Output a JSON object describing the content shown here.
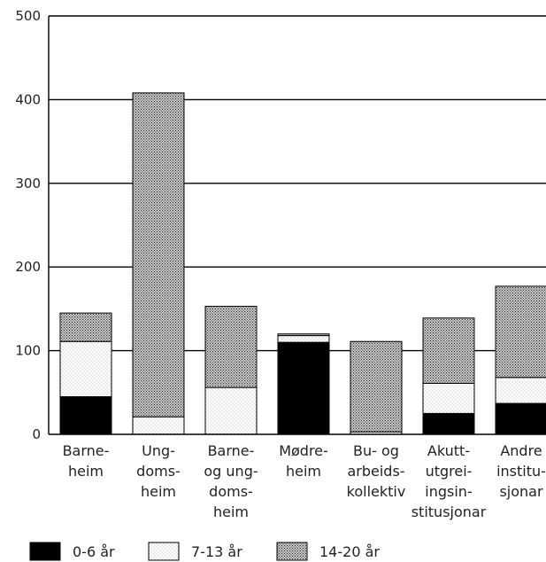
{
  "chart_data": {
    "type": "bar",
    "stacked": true,
    "categories": [
      [
        "Barne-",
        "heim"
      ],
      [
        "Ung-",
        "doms-",
        "heim"
      ],
      [
        "Barne-",
        "og ung-",
        "doms-",
        "heim"
      ],
      [
        "Mødre-",
        "heim"
      ],
      [
        "Bu- og",
        "arbeids-",
        "kollektiv"
      ],
      [
        "Akutt-",
        "utgrei-",
        "ingsin-",
        "stitusjonar"
      ],
      [
        "Andre",
        "institu-",
        "sjonar"
      ]
    ],
    "series": [
      {
        "name": "0-6 år",
        "values": [
          45,
          0,
          0,
          110,
          0,
          25,
          37
        ],
        "pattern": "solid-black"
      },
      {
        "name": "7-13 år",
        "values": [
          66,
          21,
          56,
          8,
          3,
          36,
          31
        ],
        "pattern": "light-dots"
      },
      {
        "name": "14-20 år",
        "values": [
          34,
          387,
          97,
          2,
          108,
          78,
          109
        ],
        "pattern": "dense-crosshatch"
      }
    ],
    "yticks": [
      0,
      100,
      200,
      300,
      400,
      500
    ],
    "ylim": [
      0,
      500
    ],
    "grid": true,
    "legend": "bottom",
    "colors": {
      "solid": "#000000",
      "light": "#ffffff",
      "dark": "#bdbdbd",
      "axis": "#000000"
    }
  }
}
